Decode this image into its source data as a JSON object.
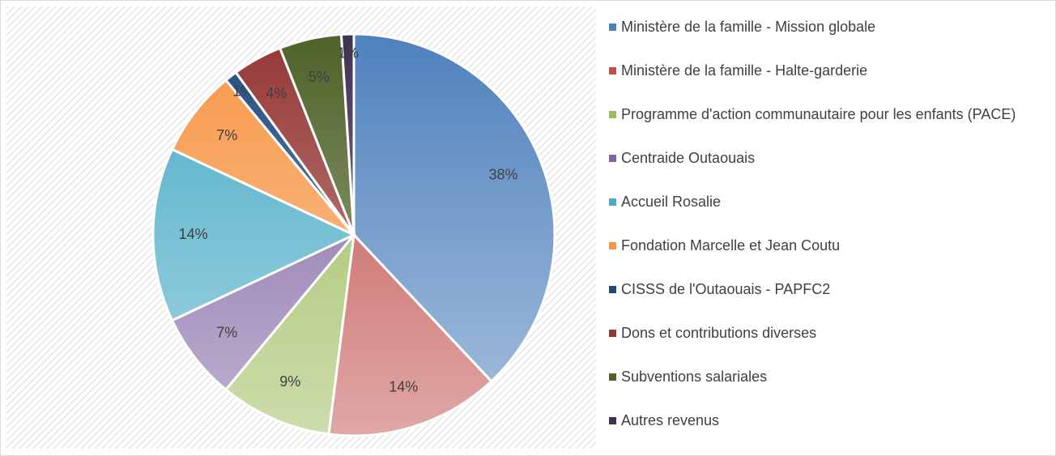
{
  "chart_data": {
    "type": "pie",
    "categories": [
      "Ministère de la famille - Mission globale",
      "Ministère de la famille - Halte-garderie",
      "Programme d'action communautaire pour les enfants (PACE)",
      "Centraide Outaouais",
      "Accueil Rosalie",
      "Fondation Marcelle et Jean Coutu",
      "CISSS de l'Outaouais - PAPFC2",
      "Dons et contributions diverses",
      "Subventions salariales",
      "Autres revenus"
    ],
    "values": [
      38,
      14,
      9,
      7,
      14,
      7,
      1,
      4,
      5,
      1
    ],
    "value_labels": [
      "38%",
      "14%",
      "9%",
      "7%",
      "14%",
      "7%",
      "1%",
      "4%",
      "5%",
      "1%"
    ],
    "colors": [
      "#4f81bd",
      "#c0504d",
      "#9bbb59",
      "#8064a2",
      "#4bacc6",
      "#f79646",
      "#1f497d",
      "#953735",
      "#4f6228",
      "#3f3151"
    ],
    "legend": "right"
  }
}
